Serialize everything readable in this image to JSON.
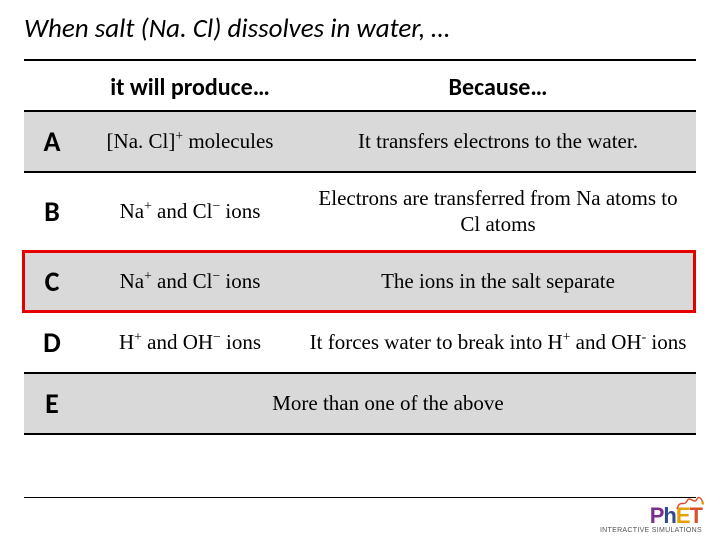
{
  "title_prefix": "When salt (",
  "title_formula": "Na. Cl",
  "title_suffix": ") dissolves in water, …",
  "col_letter_header": "",
  "col_produce_header": "it will produce…",
  "col_because_header": "Because…",
  "rows": [
    {
      "letter": "A",
      "produce": "[Na. Cl]<sup>+</sup> molecules",
      "because": "It transfers electrons to the water.",
      "shaded": true
    },
    {
      "letter": "B",
      "produce": "Na<sup>+</sup> and Cl<sup>−</sup> ions",
      "because": "Electrons are transferred from Na atoms to Cl atoms",
      "shaded": false
    },
    {
      "letter": "C",
      "produce": "Na<sup>+</sup> and Cl<sup>−</sup> ions",
      "because": "The ions in the salt separate",
      "shaded": true,
      "highlight": true
    },
    {
      "letter": "D",
      "produce": "H<sup>+</sup> and OH<sup>−</sup> ions",
      "because": "It forces water to break into H<sup>+</sup> and OH<sup>-</sup> ions",
      "shaded": false
    },
    {
      "letter": "E",
      "produce_colspan": "More than one of the above",
      "shaded": true
    }
  ],
  "highlight_row_index": 2,
  "phet": {
    "p": "P",
    "h": "h",
    "e": "E",
    "t": "T",
    "tagline": "INTERACTIVE SIMULATIONS"
  },
  "colors": {
    "shade": "#d9d9d9",
    "highlight_border": "#e40000",
    "rule": "#000000"
  }
}
